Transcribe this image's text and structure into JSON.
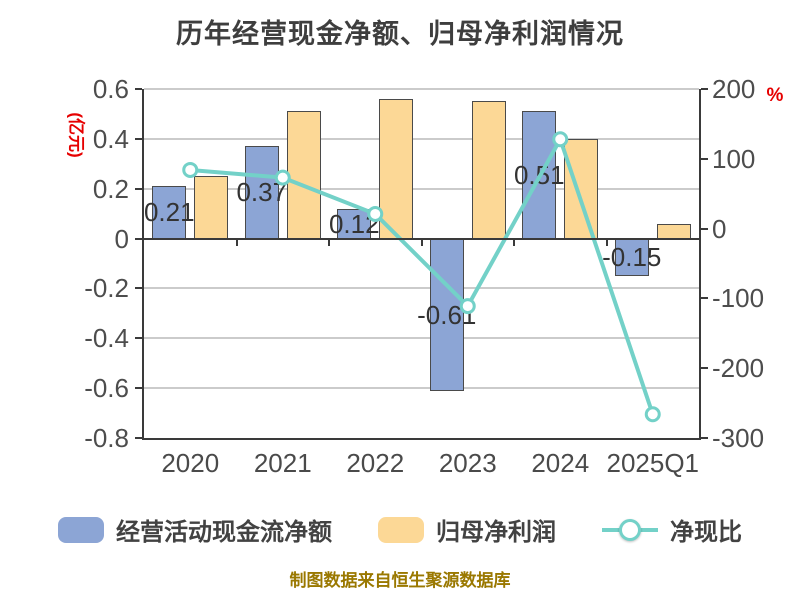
{
  "chart": {
    "title": "历年经营现金净额、归母净利润情况",
    "source_note": "制图数据来自恒生聚源数据库",
    "left_axis": {
      "unit": "(亿元)",
      "ticks": [
        "0.6",
        "0.4",
        "0.2",
        "0",
        "-0.2",
        "-0.4",
        "-0.6",
        "-0.8"
      ]
    },
    "right_axis": {
      "unit": "%",
      "ticks": [
        "200",
        "100",
        "0",
        "-100",
        "-200",
        "-300"
      ]
    }
  },
  "chart_data": {
    "type": "combo",
    "categories": [
      "2020",
      "2021",
      "2022",
      "2023",
      "2024",
      "2025Q1"
    ],
    "series": [
      {
        "name": "经营活动现金流净额",
        "type": "bar",
        "axis": "left",
        "color": "#8CA5D5",
        "values": [
          0.21,
          0.37,
          0.12,
          -0.61,
          0.51,
          -0.15
        ],
        "labels": [
          "0.21",
          "0.37",
          "0.12",
          "-0.61",
          "0.51",
          "-0.15"
        ]
      },
      {
        "name": "归母净利润",
        "type": "bar",
        "axis": "left",
        "color": "#FCD896",
        "values": [
          0.25,
          0.51,
          0.56,
          0.55,
          0.4,
          0.06
        ]
      },
      {
        "name": "净现比",
        "type": "line",
        "axis": "right",
        "color": "#73D1C8",
        "values": [
          84,
          73,
          21,
          -111,
          128,
          -266
        ]
      }
    ],
    "left_axis_range": [
      -0.8,
      0.6
    ],
    "right_axis_range": [
      -300,
      200
    ],
    "grid": true,
    "legend_position": "bottom",
    "title": "历年经营现金净额、归母净利润情况",
    "xlabel": "",
    "ylabel_left": "(亿元)",
    "ylabel_right": "%"
  },
  "colors": {
    "bar_cashflow": "#8CA5D5",
    "bar_profit": "#FCD896",
    "line_ratio": "#73D1C8",
    "gridline": "#CBCBCB",
    "axis": "#3A3A3A",
    "tick_text": "#4D4D4D",
    "unit_red": "#E60000",
    "footer_gold": "#9A7800"
  }
}
